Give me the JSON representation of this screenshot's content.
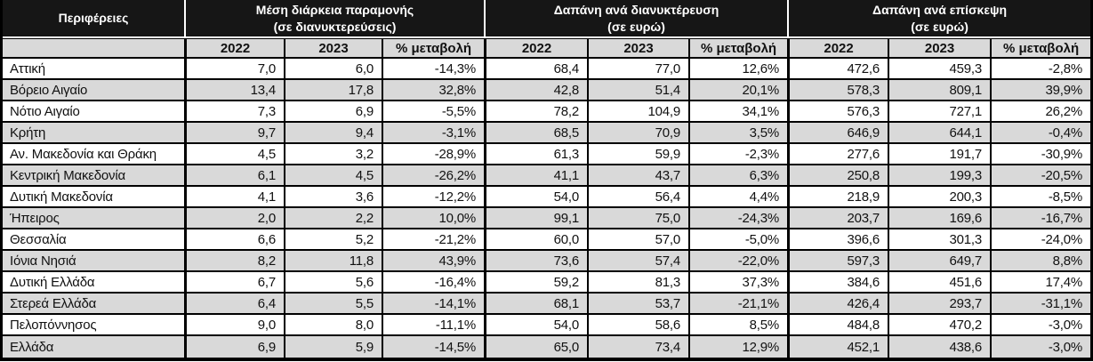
{
  "chart_data": {
    "type": "table",
    "region_header": "Περιφέρειες",
    "column_groups": [
      {
        "line1": "Μέση διάρκεια παραμονής",
        "line2": "(σε διανυκτερεύσεις)",
        "columns": [
          "2022",
          "2023",
          "% μεταβολή"
        ]
      },
      {
        "line1": "Δαπάνη ανά διανυκτέρευση",
        "line2": "(σε ευρώ)",
        "columns": [
          "2022",
          "2023",
          "% μεταβολή"
        ]
      },
      {
        "line1": "Δαπάνη ανά επίσκεψη",
        "line2": "(σε ευρώ)",
        "columns": [
          "2022",
          "2023",
          "% μεταβολή"
        ]
      }
    ],
    "rows": [
      {
        "region": "Αττική",
        "values": [
          "7,0",
          "6,0",
          "-14,3%",
          "68,4",
          "77,0",
          "12,6%",
          "472,6",
          "459,3",
          "-2,8%"
        ]
      },
      {
        "region": "Βόρειο Αιγαίο",
        "values": [
          "13,4",
          "17,8",
          "32,8%",
          "42,8",
          "51,4",
          "20,1%",
          "578,3",
          "809,1",
          "39,9%"
        ]
      },
      {
        "region": "Νότιο Αιγαίο",
        "values": [
          "7,3",
          "6,9",
          "-5,5%",
          "78,2",
          "104,9",
          "34,1%",
          "576,3",
          "727,1",
          "26,2%"
        ]
      },
      {
        "region": "Κρήτη",
        "values": [
          "9,7",
          "9,4",
          "-3,1%",
          "68,5",
          "70,9",
          "3,5%",
          "646,9",
          "644,1",
          "-0,4%"
        ]
      },
      {
        "region": "Αν. Μακεδονία και Θράκη",
        "values": [
          "4,5",
          "3,2",
          "-28,9%",
          "61,3",
          "59,9",
          "-2,3%",
          "277,6",
          "191,7",
          "-30,9%"
        ]
      },
      {
        "region": "Κεντρική Μακεδονία",
        "values": [
          "6,1",
          "4,5",
          "-26,2%",
          "41,1",
          "43,7",
          "6,3%",
          "250,8",
          "199,3",
          "-20,5%"
        ]
      },
      {
        "region": "Δυτική Μακεδονία",
        "values": [
          "4,1",
          "3,6",
          "-12,2%",
          "54,0",
          "56,4",
          "4,4%",
          "218,9",
          "200,3",
          "-8,5%"
        ]
      },
      {
        "region": "Ήπειρος",
        "values": [
          "2,0",
          "2,2",
          "10,0%",
          "99,1",
          "75,0",
          "-24,3%",
          "203,7",
          "169,6",
          "-16,7%"
        ]
      },
      {
        "region": "Θεσσαλία",
        "values": [
          "6,6",
          "5,2",
          "-21,2%",
          "60,0",
          "57,0",
          "-5,0%",
          "396,6",
          "301,3",
          "-24,0%"
        ]
      },
      {
        "region": "Ιόνια Νησιά",
        "values": [
          "8,2",
          "11,8",
          "43,9%",
          "73,6",
          "57,4",
          "-22,0%",
          "597,3",
          "649,7",
          "8,8%"
        ]
      },
      {
        "region": "Δυτική Ελλάδα",
        "values": [
          "6,7",
          "5,6",
          "-16,4%",
          "59,2",
          "81,3",
          "37,3%",
          "384,6",
          "451,6",
          "17,4%"
        ]
      },
      {
        "region": "Στερεά Ελλάδα",
        "values": [
          "6,4",
          "5,5",
          "-14,1%",
          "68,1",
          "53,7",
          "-21,1%",
          "426,4",
          "293,7",
          "-31,1%"
        ]
      },
      {
        "region": "Πελοπόννησος",
        "values": [
          "9,0",
          "8,0",
          "-11,1%",
          "54,0",
          "58,6",
          "8,5%",
          "484,8",
          "470,2",
          "-3,0%"
        ]
      },
      {
        "region": "Ελλάδα",
        "values": [
          "6,9",
          "5,9",
          "-14,5%",
          "65,0",
          "73,4",
          "12,9%",
          "452,1",
          "438,6",
          "-3,0%"
        ]
      }
    ],
    "colors": {
      "header_bg": "#161616",
      "header_text": "#ffffff",
      "subheader_bg": "#d9d9d9",
      "row_bg": "#ffffff",
      "row_alt_bg": "#d9d9d9",
      "border": "#000000"
    }
  }
}
